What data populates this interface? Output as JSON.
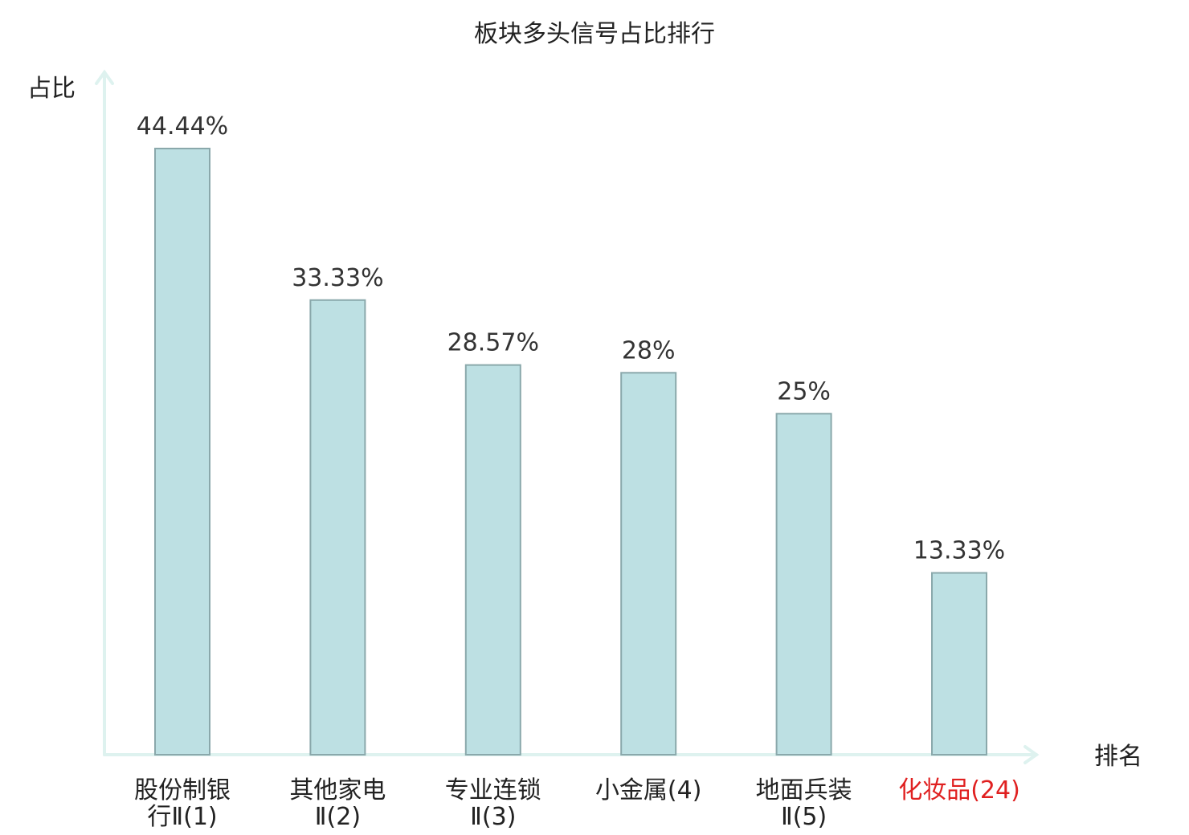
{
  "chart_data": {
    "type": "bar",
    "title": "板块多头信号占比排行",
    "xlabel": "排名",
    "ylabel": "占比",
    "ylim": [
      0,
      50
    ],
    "categories": [
      [
        "股份制银",
        "行Ⅱ(1)"
      ],
      [
        "其他家电",
        "Ⅱ(2)"
      ],
      [
        "专业连锁",
        "Ⅱ(3)"
      ],
      [
        "小金属(4)"
      ],
      [
        "地面兵装",
        "Ⅱ(5)"
      ],
      [
        "化妆品(24)"
      ]
    ],
    "values": [
      44.44,
      33.33,
      28.57,
      28,
      25,
      13.33
    ],
    "data_labels": [
      "44.44%",
      "33.33%",
      "28.57%",
      "28%",
      "25%",
      "13.33%"
    ],
    "highlight_index": 5,
    "colors": {
      "bar_fill": "#bde0e3",
      "bar_stroke": "#8aa8ab",
      "axis": "#def2ef",
      "highlight_label": "#e02020",
      "label": "#222222"
    }
  }
}
